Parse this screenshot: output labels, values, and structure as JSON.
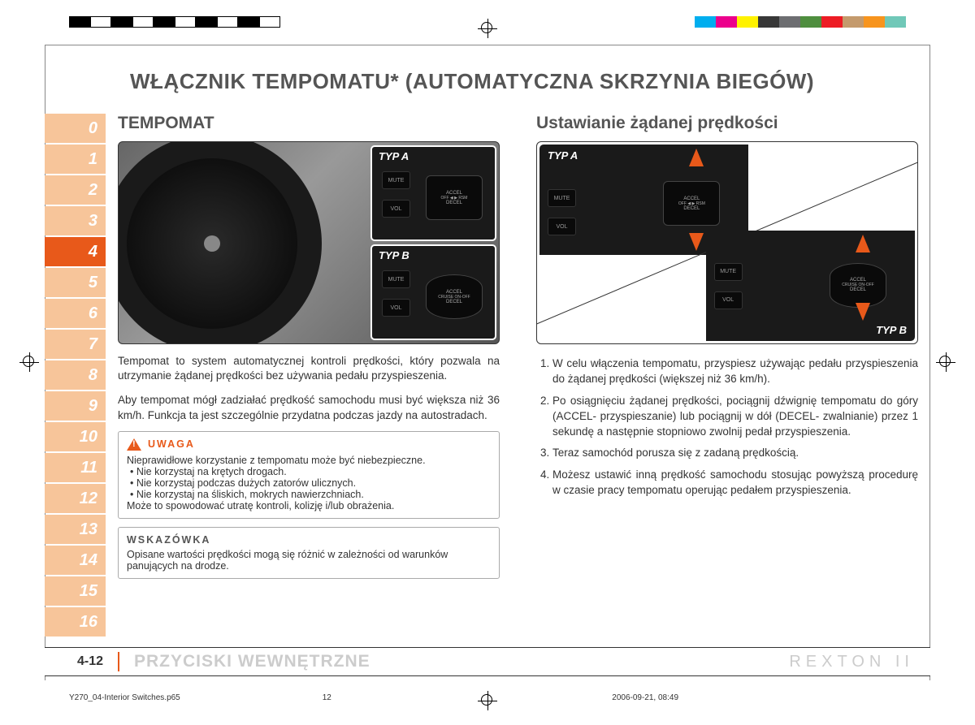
{
  "colorbars": {
    "left": [
      "#000000",
      "#ffffff",
      "#000000",
      "#ffffff",
      "#000000",
      "#ffffff",
      "#000000",
      "#ffffff",
      "#000000",
      "#ffffff"
    ],
    "right": [
      "#00aeef",
      "#ec008c",
      "#fff200",
      "#383838",
      "#6d6e71",
      "#4f8e3f",
      "#ed1c24",
      "#c49a6c",
      "#f7941d",
      "#70c8b8"
    ]
  },
  "mainTitle": "WŁĄCZNIK TEMPOMATU* (AUTOMATYCZNA SKRZYNIA BIEGÓW)",
  "tabs": [
    "0",
    "1",
    "2",
    "3",
    "4",
    "5",
    "6",
    "7",
    "8",
    "9",
    "10",
    "11",
    "12",
    "13",
    "14",
    "15",
    "16"
  ],
  "activeTab": "4",
  "left": {
    "title": "TEMPOMAT",
    "typLabels": {
      "a": "TYP A",
      "b": "TYP B"
    },
    "controls": {
      "mute": "MUTE",
      "vol": "VOL",
      "accel": "ACCEL",
      "decel": "DECEL",
      "cruise": "CRUISE ON-OFF",
      "off": "OFF",
      "rsm": "RSM"
    },
    "para1": "Tempomat to system automatycznej kontroli prędkości, który pozwala na utrzymanie żądanej prędkości bez używania pedału przyspieszenia.",
    "para2": "Aby tempomat mógł zadziałać prędkość samochodu musi być większa niż 36 km/h. Funkcja ta jest szczególnie przydatna podczas jazdy na autostradach.",
    "warn": {
      "hdr": "UWAGA",
      "intro": "Nieprawidłowe korzystanie z tempomatu może być niebezpieczne.",
      "items": [
        "Nie korzystaj na krętych drogach.",
        "Nie korzystaj podczas dużych zatorów ulicznych.",
        "Nie korzystaj na śliskich, mokrych nawierzchniach."
      ],
      "outro": "Może to spowodować utratę kontroli, kolizję i/lub obrażenia."
    },
    "tip": {
      "hdr": "WSKAZÓWKA",
      "text": "Opisane wartości prędkości mogą się różnić w zależności od warunków panujących na drodze."
    }
  },
  "right": {
    "title": "Ustawianie żądanej prędkości",
    "typLabels": {
      "a": "TYP A",
      "b": "TYP B"
    },
    "steps": [
      "W celu włączenia tempomatu, przyspiesz używając pedału przyspieszenia do żądanej prędkości (większej niż 36 km/h).",
      "Po osiągnięciu żądanej prędkości, pociągnij dźwignię tempomatu do góry (ACCEL- przyspieszanie) lub pociągnij w dół (DECEL- zwalnianie) przez 1 sekundę a następnie stopniowo zwolnij pedał przyspieszenia.",
      "Teraz samochód porusza się z zadaną prędkością.",
      "Możesz ustawić inną prędkość samochodu stosując powyższą procedurę w czasie pracy tempomatu operując pedałem przyspieszenia."
    ]
  },
  "footer": {
    "pageNum": "4-12",
    "title": "PRZYCISKI WEWNĘTRZNE",
    "brand": "REXTON II"
  },
  "printfoot": {
    "file": "Y270_04-Interior Switches.p65",
    "page": "12",
    "date": "2006-09-21, 08:49"
  }
}
